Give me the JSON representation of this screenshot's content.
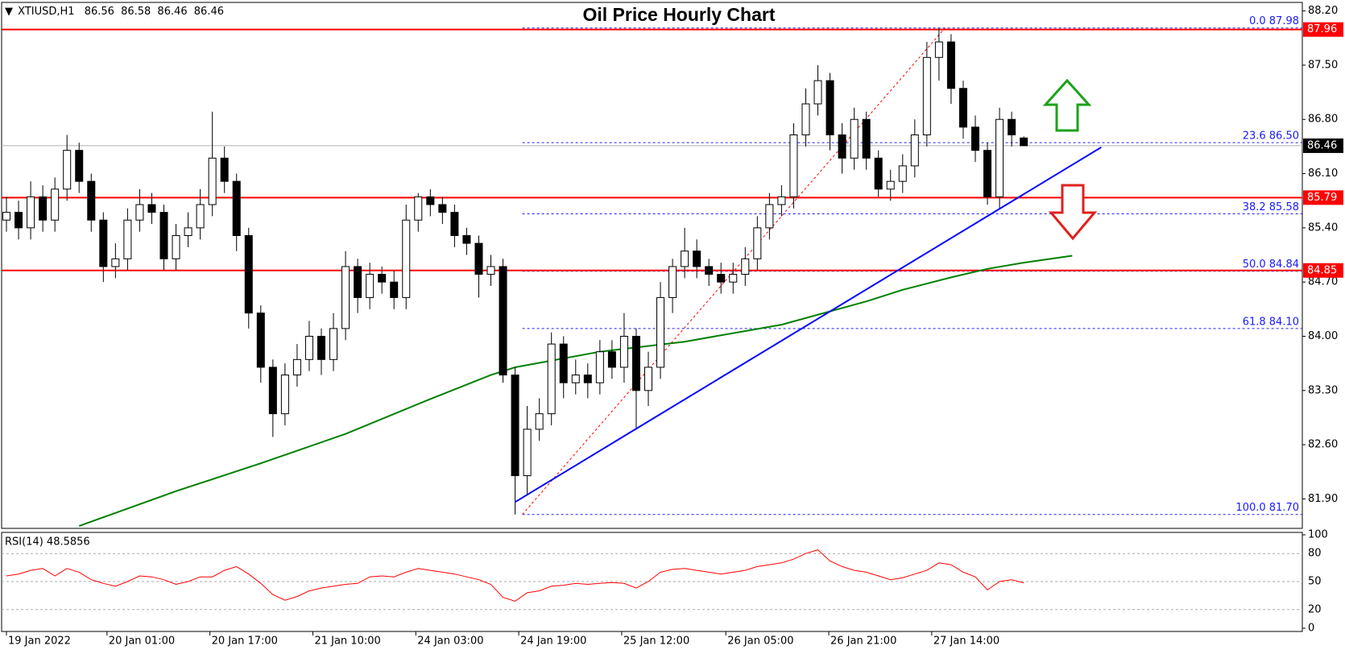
{
  "chart_data": [
    {
      "type": "candlestick",
      "title": "Oil Price Hourly Chart",
      "symbol": "XTIUSD,H1",
      "open": [
        85.5,
        85.6,
        85.4,
        85.8,
        85.5,
        85.9,
        86.4,
        86.0,
        85.5,
        84.9,
        85.0,
        85.5,
        85.7,
        85.6,
        85.0,
        85.3,
        85.4,
        85.7,
        86.3,
        86.0,
        85.3,
        84.3,
        83.6,
        83.0,
        83.5,
        83.7,
        84.0,
        83.7,
        84.1,
        84.9,
        84.5,
        84.8,
        84.7,
        84.5,
        85.5,
        85.8,
        85.7,
        85.6,
        85.3,
        85.2,
        84.8,
        84.9,
        83.5,
        82.2,
        82.8,
        83.0,
        83.9,
        83.4,
        83.5,
        83.4,
        83.8,
        83.6,
        84.0,
        83.3,
        83.6,
        84.5,
        84.9,
        85.1,
        84.9,
        84.8,
        84.7,
        84.8,
        85.0,
        85.4,
        85.7,
        85.8,
        86.6,
        87.0,
        87.3,
        86.6,
        86.3,
        86.8,
        86.3,
        85.9,
        86.0,
        86.2,
        86.6,
        87.6,
        87.8,
        87.2,
        86.7,
        86.4,
        85.8,
        86.8,
        86.56
      ],
      "high": [
        85.8,
        85.75,
        86.0,
        85.95,
        86.05,
        86.6,
        86.5,
        86.1,
        85.6,
        85.2,
        85.65,
        85.9,
        85.85,
        85.7,
        85.45,
        85.6,
        85.9,
        86.9,
        86.45,
        86.1,
        85.4,
        84.4,
        83.7,
        83.65,
        83.9,
        84.2,
        84.1,
        84.3,
        85.1,
        85.0,
        84.95,
        84.9,
        84.85,
        85.7,
        85.85,
        85.9,
        85.8,
        85.7,
        85.4,
        85.3,
        85.05,
        85.0,
        83.6,
        83.1,
        83.2,
        84.05,
        84.0,
        83.7,
        83.65,
        83.95,
        83.95,
        84.3,
        84.1,
        83.8,
        84.7,
        85.0,
        85.4,
        85.25,
        85.0,
        84.95,
        84.95,
        85.15,
        85.55,
        85.85,
        85.95,
        86.75,
        87.2,
        87.5,
        87.4,
        86.75,
        86.95,
        86.9,
        86.4,
        86.15,
        86.35,
        86.8,
        87.8,
        87.98,
        87.9,
        87.3,
        86.85,
        86.5,
        86.95,
        86.9,
        86.58
      ],
      "low": [
        85.35,
        85.25,
        85.25,
        85.35,
        85.35,
        85.75,
        85.85,
        85.35,
        84.7,
        84.75,
        84.85,
        85.35,
        85.45,
        84.85,
        84.85,
        85.15,
        85.25,
        85.55,
        85.85,
        85.1,
        84.1,
        83.4,
        82.7,
        82.85,
        83.35,
        83.55,
        83.5,
        83.55,
        83.95,
        84.3,
        84.35,
        84.55,
        84.35,
        84.35,
        85.35,
        85.55,
        85.45,
        85.15,
        85.05,
        84.5,
        84.65,
        83.4,
        81.7,
        81.95,
        82.65,
        82.85,
        83.2,
        83.25,
        83.2,
        83.25,
        83.45,
        83.4,
        82.8,
        83.1,
        83.45,
        84.3,
        84.75,
        84.75,
        84.65,
        84.55,
        84.55,
        84.65,
        84.85,
        85.25,
        85.55,
        85.65,
        86.45,
        86.85,
        86.4,
        86.1,
        86.15,
        86.15,
        85.8,
        85.75,
        85.85,
        86.05,
        86.45,
        87.3,
        87.0,
        86.55,
        86.25,
        85.7,
        85.65,
        86.45,
        86.46
      ],
      "close": [
        85.6,
        85.4,
        85.8,
        85.5,
        85.9,
        86.4,
        86.0,
        85.5,
        84.9,
        85.0,
        85.5,
        85.7,
        85.6,
        85.0,
        85.3,
        85.4,
        85.7,
        86.3,
        86.0,
        85.3,
        84.3,
        83.6,
        83.0,
        83.5,
        83.7,
        84.0,
        83.7,
        84.1,
        84.9,
        84.5,
        84.8,
        84.7,
        84.5,
        85.5,
        85.8,
        85.7,
        85.6,
        85.3,
        85.2,
        84.8,
        84.9,
        83.5,
        82.2,
        82.8,
        83.0,
        83.9,
        83.4,
        83.5,
        83.4,
        83.8,
        83.6,
        84.0,
        83.3,
        83.6,
        84.5,
        84.9,
        85.1,
        84.9,
        84.8,
        84.7,
        84.8,
        85.0,
        85.4,
        85.7,
        85.8,
        86.6,
        87.0,
        87.3,
        86.6,
        86.3,
        86.8,
        86.3,
        85.9,
        86.0,
        86.2,
        86.6,
        87.6,
        87.8,
        87.2,
        86.7,
        86.4,
        85.8,
        86.8,
        86.6,
        86.46
      ],
      "moving_average": {
        "color": "#008000",
        "x": [
          6,
          14,
          21,
          28,
          35,
          40,
          42,
          49,
          56,
          64,
          71,
          74,
          78,
          81,
          84,
          88
        ],
        "values": [
          81.55,
          82.0,
          82.36,
          82.74,
          83.19,
          83.5,
          83.6,
          83.8,
          83.93,
          84.15,
          84.45,
          84.6,
          84.76,
          84.87,
          84.95,
          85.04
        ]
      },
      "trendline": {
        "color": "#0000ff",
        "x": [
          42,
          90.4
        ],
        "values": [
          81.86,
          86.44
        ]
      },
      "fib_line": {
        "color": "#ff0000",
        "x": [
          42.6,
          77.5
        ],
        "values": [
          81.7,
          87.98
        ]
      },
      "fib_levels": [
        {
          "value": 87.98,
          "label": "0.0 87.98"
        },
        {
          "value": 86.5,
          "label": "23.6 86.50"
        },
        {
          "value": 85.58,
          "label": "38.2 85.58"
        },
        {
          "value": 84.84,
          "label": "50.0 84.84"
        },
        {
          "value": 84.1,
          "label": "61.8 84.10"
        },
        {
          "value": 81.7,
          "label": "100.0 81.70"
        }
      ],
      "hlines": [
        87.96,
        85.79,
        84.85
      ],
      "hline_color": "#ff0000",
      "xlim": [
        -0.4,
        107
      ],
      "xticks": [
        {
          "value": 0,
          "label": "19 Jan 2022"
        },
        {
          "value": 8.3,
          "label": "20 Jan 01:00"
        },
        {
          "value": 16.8,
          "label": "20 Jan 17:00"
        },
        {
          "value": 25.3,
          "label": "21 Jan 10:00"
        },
        {
          "value": 33.8,
          "label": "24 Jan 03:00"
        },
        {
          "value": 42.3,
          "label": "24 Jan 19:00"
        },
        {
          "value": 50.8,
          "label": "25 Jan 12:00"
        },
        {
          "value": 59.4,
          "label": "26 Jan 05:00"
        },
        {
          "value": 67.9,
          "label": "26 Jan 21:00"
        },
        {
          "value": 76.4,
          "label": "27 Jan 14:00"
        }
      ],
      "ylim": [
        81.52,
        88.31
      ],
      "yticks": [
        {
          "value": 88.2,
          "label": "88.20"
        },
        {
          "value": 87.5,
          "label": "87.50"
        },
        {
          "value": 86.8,
          "label": "86.80"
        },
        {
          "value": 86.1,
          "label": "86.10"
        },
        {
          "value": 85.4,
          "label": "85.40"
        },
        {
          "value": 84.7,
          "label": "84.70"
        },
        {
          "value": 84.0,
          "label": "84.00"
        },
        {
          "value": 83.3,
          "label": "83.30"
        },
        {
          "value": 82.6,
          "label": "82.60"
        },
        {
          "value": 81.9,
          "label": "81.90"
        }
      ]
    },
    {
      "type": "line",
      "title": "RSI(14) 48.5856",
      "color": "#ff0000",
      "values": [
        56,
        58,
        62,
        64,
        56,
        64,
        60,
        52,
        48,
        45,
        50,
        56,
        55,
        52,
        47,
        50,
        55,
        55,
        62,
        66,
        58,
        48,
        36,
        30,
        34,
        40,
        43,
        45,
        47,
        48,
        55,
        56,
        55,
        60,
        64,
        62,
        60,
        58,
        55,
        52,
        47,
        33,
        29,
        38,
        40,
        45,
        46,
        48,
        47,
        48,
        49,
        48,
        43,
        50,
        60,
        63,
        64,
        62,
        60,
        58,
        60,
        62,
        66,
        68,
        70,
        74,
        80,
        84,
        72,
        66,
        62,
        60,
        56,
        52,
        54,
        58,
        62,
        70,
        68,
        60,
        55,
        41,
        50,
        52,
        48.5856
      ],
      "ylim": [
        0,
        100
      ],
      "yticks": [
        0,
        20,
        50,
        80,
        100
      ]
    }
  ]
}
